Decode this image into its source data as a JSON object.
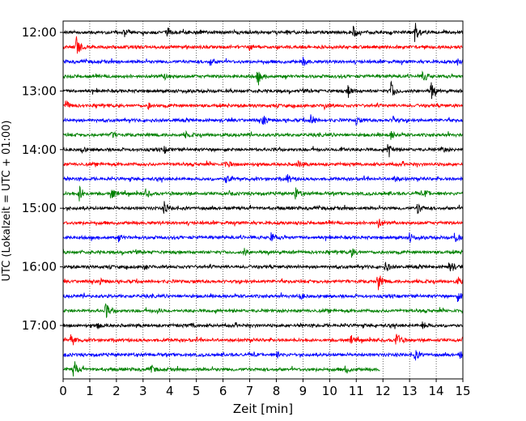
{
  "chart_data": {
    "type": "line",
    "subtype": "helicorder",
    "xlabel": "Zeit  [min]",
    "ylabel": "UTC (Lokalzeit = UTC + 01:00)",
    "xlim": [
      0,
      15
    ],
    "x_ticks": [
      "0",
      "1",
      "2",
      "3",
      "4",
      "5",
      "6",
      "7",
      "8",
      "9",
      "10",
      "11",
      "12",
      "13",
      "14",
      "15"
    ],
    "y_tick_labels": [
      "12:00",
      "13:00",
      "14:00",
      "15:00",
      "16:00",
      "17:00"
    ],
    "grid": "vertical dotted lines at each minute",
    "trace_colors": [
      "#000000",
      "#ff0000",
      "#0000ff",
      "#008000"
    ],
    "traces": [
      {
        "row": 0,
        "color": "#000000",
        "end_min": 15,
        "events": [
          {
            "t": 2.3,
            "a": 0.35
          },
          {
            "t": 3.9,
            "a": 0.35
          },
          {
            "t": 5.0,
            "a": 0.3
          },
          {
            "t": 10.9,
            "a": 0.5
          },
          {
            "t": 13.2,
            "a": 1.0
          }
        ]
      },
      {
        "row": 1,
        "color": "#ff0000",
        "end_min": 15,
        "events": [
          {
            "t": 0.5,
            "a": 1.0
          },
          {
            "t": 7.0,
            "a": 0.3
          }
        ]
      },
      {
        "row": 2,
        "color": "#0000ff",
        "end_min": 15,
        "events": [
          {
            "t": 5.5,
            "a": 0.5
          },
          {
            "t": 9.0,
            "a": 0.4
          },
          {
            "t": 14.8,
            "a": 0.3
          }
        ]
      },
      {
        "row": 3,
        "color": "#008000",
        "end_min": 15,
        "events": [
          {
            "t": 3.8,
            "a": 0.35
          },
          {
            "t": 7.3,
            "a": 0.7
          },
          {
            "t": 13.5,
            "a": 0.6
          }
        ]
      },
      {
        "row": 4,
        "color": "#000000",
        "end_min": 15,
        "events": [
          {
            "t": 10.7,
            "a": 0.6
          },
          {
            "t": 12.3,
            "a": 0.9
          },
          {
            "t": 13.8,
            "a": 1.0
          }
        ]
      },
      {
        "row": 5,
        "color": "#ff0000",
        "end_min": 15,
        "events": [
          {
            "t": 0.1,
            "a": 0.5
          },
          {
            "t": 3.2,
            "a": 0.25
          },
          {
            "t": 9.8,
            "a": 0.3
          }
        ]
      },
      {
        "row": 6,
        "color": "#0000ff",
        "end_min": 15,
        "events": [
          {
            "t": 7.5,
            "a": 0.5
          },
          {
            "t": 9.3,
            "a": 0.6
          },
          {
            "t": 11.0,
            "a": 0.4
          },
          {
            "t": 12.4,
            "a": 0.4
          }
        ]
      },
      {
        "row": 7,
        "color": "#008000",
        "end_min": 15,
        "events": [
          {
            "t": 1.8,
            "a": 0.3
          },
          {
            "t": 4.6,
            "a": 0.25
          },
          {
            "t": 12.3,
            "a": 0.4
          }
        ]
      },
      {
        "row": 8,
        "color": "#000000",
        "end_min": 15,
        "events": [
          {
            "t": 0.7,
            "a": 0.3
          },
          {
            "t": 3.8,
            "a": 0.3
          },
          {
            "t": 10.4,
            "a": 0.4
          },
          {
            "t": 12.2,
            "a": 0.8
          },
          {
            "t": 14.2,
            "a": 0.3
          }
        ]
      },
      {
        "row": 9,
        "color": "#ff0000",
        "end_min": 15,
        "events": [
          {
            "t": 6.1,
            "a": 0.35
          },
          {
            "t": 8.8,
            "a": 0.3
          }
        ]
      },
      {
        "row": 10,
        "color": "#0000ff",
        "end_min": 15,
        "events": [
          {
            "t": 6.1,
            "a": 0.5
          },
          {
            "t": 8.4,
            "a": 0.45
          },
          {
            "t": 12.4,
            "a": 0.3
          }
        ]
      },
      {
        "row": 11,
        "color": "#008000",
        "end_min": 15,
        "events": [
          {
            "t": 0.6,
            "a": 0.8
          },
          {
            "t": 1.8,
            "a": 0.6
          },
          {
            "t": 3.1,
            "a": 0.4
          },
          {
            "t": 8.7,
            "a": 0.7
          },
          {
            "t": 13.6,
            "a": 0.3
          }
        ]
      },
      {
        "row": 12,
        "color": "#000000",
        "end_min": 15,
        "events": [
          {
            "t": 3.8,
            "a": 0.6
          },
          {
            "t": 13.3,
            "a": 0.6
          }
        ]
      },
      {
        "row": 13,
        "color": "#ff0000",
        "end_min": 15,
        "events": [
          {
            "t": 11.8,
            "a": 0.55
          }
        ]
      },
      {
        "row": 14,
        "color": "#0000ff",
        "end_min": 15,
        "events": [
          {
            "t": 2.1,
            "a": 0.3
          },
          {
            "t": 7.8,
            "a": 0.45
          },
          {
            "t": 13.0,
            "a": 0.4
          },
          {
            "t": 14.7,
            "a": 0.6
          }
        ]
      },
      {
        "row": 15,
        "color": "#008000",
        "end_min": 15,
        "events": [
          {
            "t": 6.8,
            "a": 0.3
          },
          {
            "t": 10.8,
            "a": 0.55
          }
        ]
      },
      {
        "row": 16,
        "color": "#000000",
        "end_min": 15,
        "events": [
          {
            "t": 3.0,
            "a": 0.3
          },
          {
            "t": 12.1,
            "a": 0.5
          },
          {
            "t": 14.5,
            "a": 0.75
          }
        ]
      },
      {
        "row": 17,
        "color": "#ff0000",
        "end_min": 15,
        "events": [
          {
            "t": 1.4,
            "a": 0.25
          },
          {
            "t": 11.8,
            "a": 1.0
          },
          {
            "t": 14.8,
            "a": 0.35
          }
        ]
      },
      {
        "row": 18,
        "color": "#0000ff",
        "end_min": 15,
        "events": [
          {
            "t": 8.9,
            "a": 0.3
          },
          {
            "t": 14.8,
            "a": 0.5
          }
        ]
      },
      {
        "row": 19,
        "color": "#008000",
        "end_min": 15,
        "events": [
          {
            "t": 1.6,
            "a": 0.8
          },
          {
            "t": 3.5,
            "a": 0.25
          }
        ]
      },
      {
        "row": 20,
        "color": "#000000",
        "end_min": 15,
        "events": [
          {
            "t": 1.3,
            "a": 0.3
          },
          {
            "t": 4.8,
            "a": 0.25
          },
          {
            "t": 13.5,
            "a": 0.4
          }
        ]
      },
      {
        "row": 21,
        "color": "#ff0000",
        "end_min": 15,
        "events": [
          {
            "t": 0.3,
            "a": 0.7
          },
          {
            "t": 10.8,
            "a": 0.4
          },
          {
            "t": 12.5,
            "a": 1.0
          }
        ]
      },
      {
        "row": 22,
        "color": "#0000ff",
        "end_min": 15,
        "events": [
          {
            "t": 8.0,
            "a": 0.3
          },
          {
            "t": 13.2,
            "a": 0.55
          },
          {
            "t": 14.9,
            "a": 0.35
          }
        ]
      },
      {
        "row": 23,
        "color": "#008000",
        "end_min": 11.9,
        "events": [
          {
            "t": 0.4,
            "a": 0.9
          },
          {
            "t": 3.3,
            "a": 0.3
          },
          {
            "t": 10.6,
            "a": 0.4
          }
        ]
      }
    ]
  }
}
